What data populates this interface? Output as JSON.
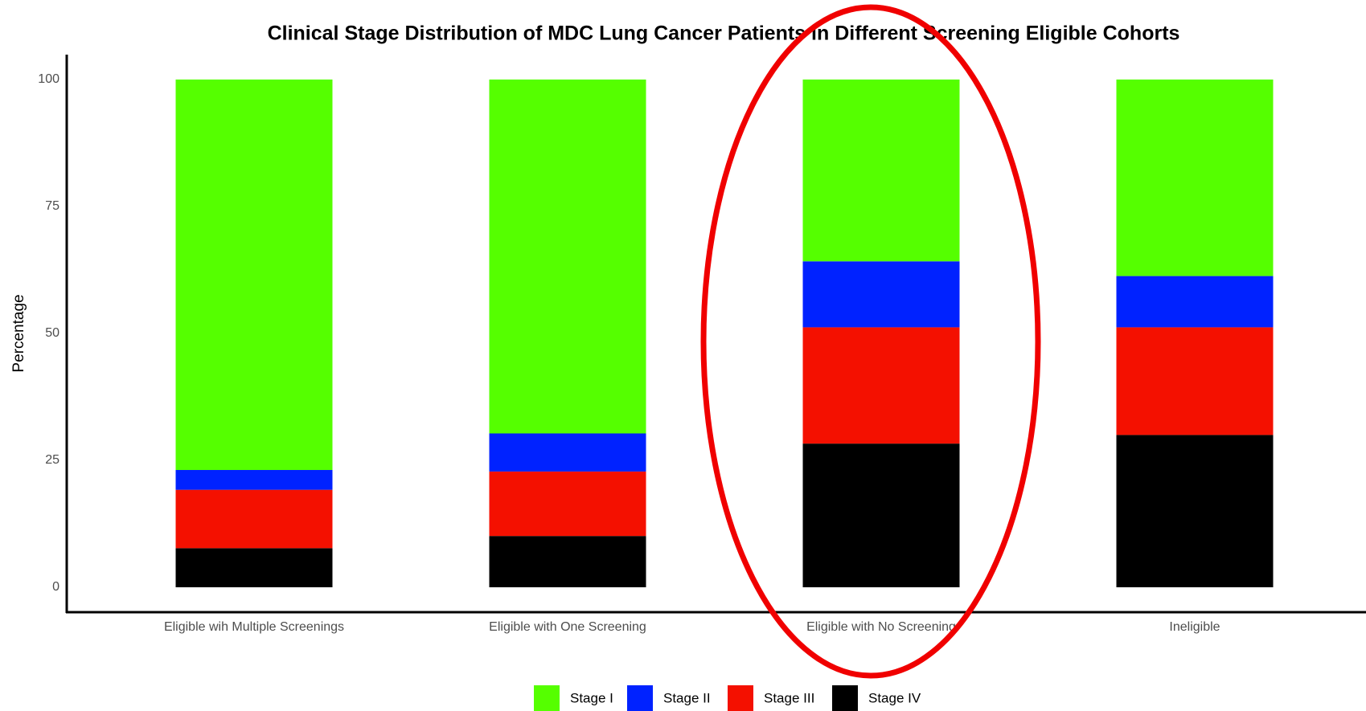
{
  "chart_data": {
    "type": "stacked_bar",
    "title": "Clinical Stage Distribution of MDC Lung Cancer Patients in Different Screening Eligible Cohorts",
    "y_label": "Percentage",
    "categories": [
      "Eligible wih Multiple Screenings",
      "Eligible with One Screening",
      "Eligible with No Screening",
      "Ineligible"
    ],
    "series": [
      {
        "name": "Stage I",
        "color": "#55ff00",
        "values": [
          76.9,
          69.7,
          35.8,
          38.7
        ]
      },
      {
        "name": "Stage II",
        "color": "#0022ff",
        "values": [
          3.9,
          7.5,
          13.0,
          10.1
        ]
      },
      {
        "name": "Stage III",
        "color": "#f41000",
        "values": [
          11.5,
          12.7,
          22.9,
          21.2
        ]
      },
      {
        "name": "Stage IV",
        "color": "#000000",
        "values": [
          7.7,
          10.1,
          28.3,
          30.0
        ]
      }
    ],
    "ylim": [
      0,
      100
    ],
    "yticks": [
      0,
      25,
      50,
      75,
      100
    ],
    "grid": false,
    "legend": "bottom"
  }
}
